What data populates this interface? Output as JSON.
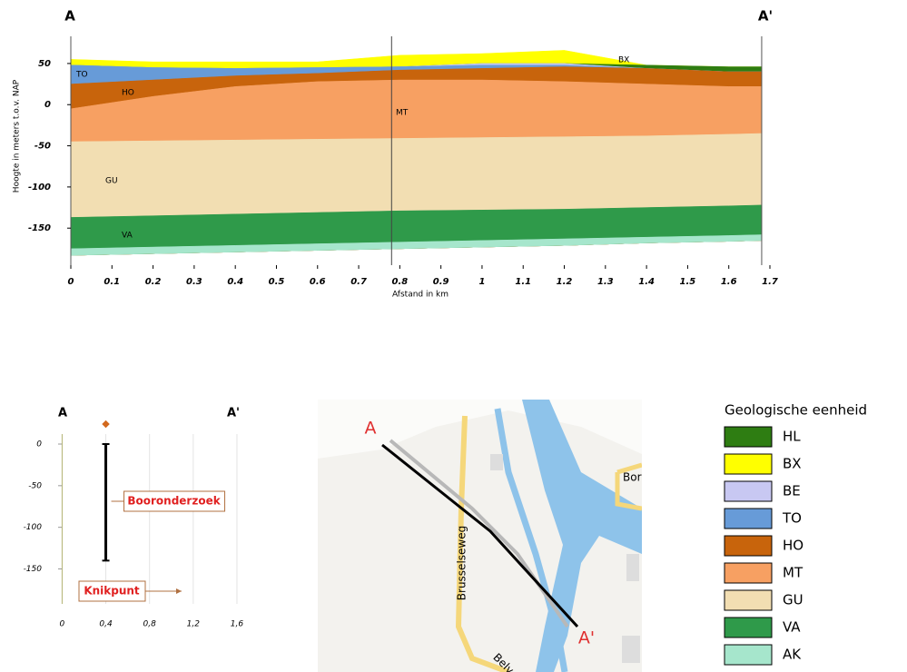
{
  "chart_data": [
    {
      "type": "section",
      "end_left": "A",
      "end_right": "A'",
      "ylabel": "Hoogte in meters t.o.v. NAP",
      "xlabel": "Afstand in km",
      "x": [
        0,
        0.2,
        0.4,
        0.6,
        0.8,
        1.0,
        1.2,
        1.4,
        1.6,
        1.68
      ],
      "xlim": [
        0,
        1.7
      ],
      "ylim": [
        -195,
        83
      ],
      "xticks": [
        0,
        0.1,
        0.2,
        0.3,
        0.4,
        0.5,
        0.6,
        0.7,
        0.8,
        0.9,
        1,
        1.1,
        1.2,
        1.3,
        1.4,
        1.5,
        1.6,
        1.7
      ],
      "yticks": [
        50,
        0,
        -50,
        -100,
        -150
      ],
      "knick_x": 0.78,
      "legend_title": "Geologische eenheid",
      "layers": [
        {
          "name": "HL",
          "color": "#2e7d12",
          "values": [
            48,
            45,
            44,
            45,
            46,
            50,
            50,
            48,
            46,
            46
          ]
        },
        {
          "name": "BX",
          "color": "#ffff00",
          "values": [
            55,
            52,
            52,
            52,
            60,
            62,
            66,
            48,
            46,
            46
          ]
        },
        {
          "name": "BE",
          "color": "#c8c8f2",
          "values": [
            48,
            45,
            44,
            45,
            46,
            50,
            50,
            44,
            40,
            40
          ]
        },
        {
          "name": "TO",
          "color": "#679bd8",
          "values": [
            48,
            45,
            44,
            45,
            46,
            48,
            48,
            44,
            40,
            40
          ]
        },
        {
          "name": "HO",
          "color": "#c8640c",
          "values": [
            25,
            30,
            35,
            38,
            42,
            44,
            46,
            44,
            40,
            40
          ]
        },
        {
          "name": "MT",
          "color": "#f7a062",
          "values": [
            -5,
            10,
            22,
            28,
            30,
            30,
            28,
            25,
            22,
            22
          ]
        },
        {
          "name": "GU",
          "color": "#f2deb2",
          "values": [
            -45,
            -44,
            -43,
            -42,
            -41,
            -40,
            -39,
            -38,
            -36,
            -35
          ]
        },
        {
          "name": "VA",
          "color": "#2f9a4a",
          "values": [
            -137,
            -135,
            -133,
            -131,
            -129,
            -128,
            -127,
            -125,
            -123,
            -122
          ]
        },
        {
          "name": "AK",
          "color": "#a6e6cc",
          "values": [
            -175,
            -173,
            -171,
            -169,
            -167,
            -165,
            -163,
            -161,
            -159,
            -158
          ],
          "bottom": [
            -183,
            -181,
            -179,
            -177,
            -175,
            -173,
            -171,
            -168,
            -166,
            -165
          ]
        }
      ]
    },
    {
      "type": "boreholes",
      "end_left": "A",
      "end_right": "A'",
      "xlim": [
        -0.02,
        1.7
      ],
      "ylim": [
        -192,
        12
      ],
      "xticks": [
        0,
        {
          "value": 0.4,
          "label": "0,4"
        },
        {
          "value": 0.8,
          "label": "0,8"
        },
        {
          "value": 1.2,
          "label": "1,2"
        },
        {
          "value": 1.6,
          "label": "1,6"
        }
      ],
      "yticks": [
        0,
        -50,
        -100,
        -150
      ],
      "boreholes": [
        {
          "x": 0.4,
          "top": 0,
          "bottom": -140
        }
      ],
      "borehole_label": "Booronderzoek",
      "knick_label": "Knikpunt"
    }
  ],
  "map": {
    "labels": [
      "A",
      "A'",
      "Brusselseweg",
      "Bor",
      "Belv"
    ]
  }
}
